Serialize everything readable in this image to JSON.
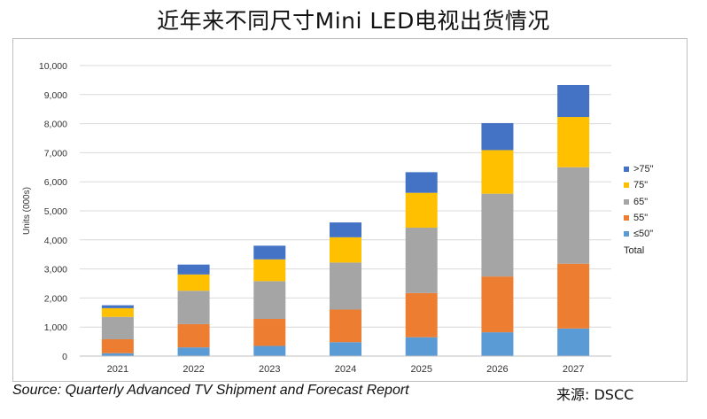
{
  "title": "近年来不同尺寸Mini LED电视出货情况",
  "source": "Source: Quarterly Advanced TV Shipment and Forecast Report",
  "credit": "来源: DSCC",
  "chart_data": {
    "type": "bar",
    "stacked": true,
    "ylabel": "Units (000s)",
    "xlabel": "",
    "ylim": [
      0,
      10000
    ],
    "yticks": [
      0,
      1000,
      2000,
      3000,
      4000,
      5000,
      6000,
      7000,
      8000,
      9000,
      10000
    ],
    "ytick_labels": [
      "0",
      "1,000",
      "2,000",
      "3,000",
      "4,000",
      "5,000",
      "6,000",
      "7,000",
      "8,000",
      "9,000",
      "10,000"
    ],
    "grid": true,
    "legend_position": "right",
    "categories": [
      "2021",
      "2022",
      "2023",
      "2024",
      "2025",
      "2026",
      "2027"
    ],
    "series": [
      {
        "name": "≤50\"",
        "color": "#5b9bd5",
        "values": [
          100,
          300,
          350,
          480,
          650,
          820,
          950
        ]
      },
      {
        "name": "55\"",
        "color": "#ed7d31",
        "values": [
          480,
          800,
          930,
          1120,
          1520,
          1920,
          2230
        ]
      },
      {
        "name": "65\"",
        "color": "#a5a5a5",
        "values": [
          770,
          1150,
          1300,
          1620,
          2250,
          2850,
          3320
        ]
      },
      {
        "name": "75\"",
        "color": "#ffc000",
        "values": [
          300,
          560,
          750,
          870,
          1200,
          1500,
          1730
        ]
      },
      {
        "name": ">75\"",
        "color": "#4472c4",
        "values": [
          100,
          340,
          470,
          510,
          710,
          930,
          1100
        ]
      }
    ],
    "legend_entries": [
      ">75\"",
      "75\"",
      "65\"",
      "55\"",
      "≤50\"",
      "Total"
    ]
  }
}
